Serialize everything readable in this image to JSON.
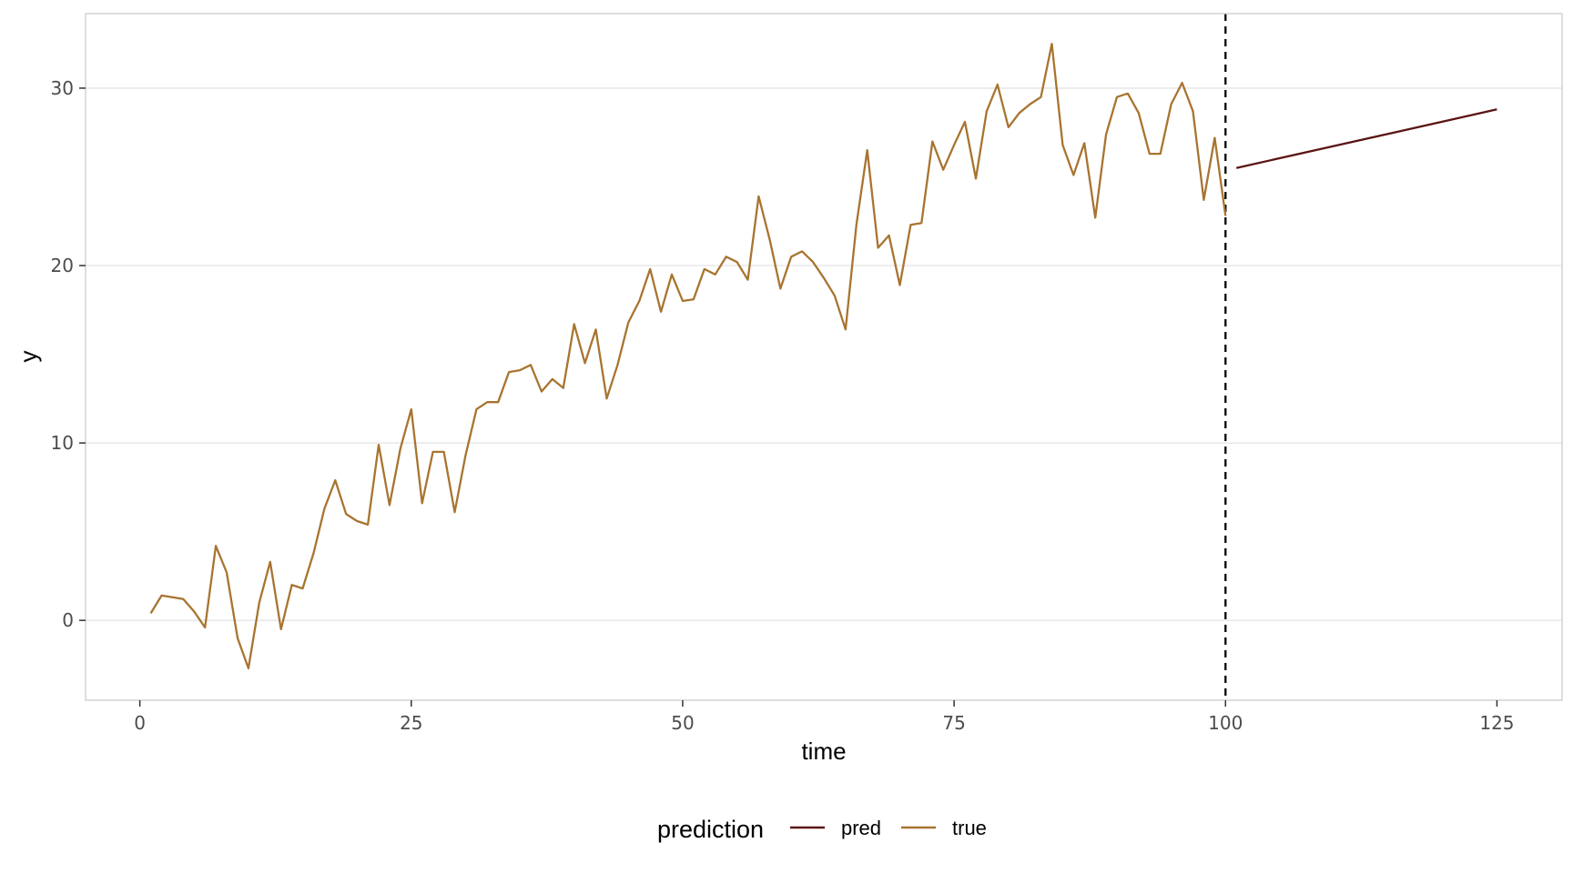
{
  "chart_data": {
    "type": "line",
    "title": "",
    "xlabel": "time",
    "ylabel": "y",
    "xlim": [
      -5,
      131
    ],
    "ylim": [
      -4.5,
      34.2
    ],
    "x_ticks": [
      0,
      25,
      50,
      75,
      100,
      125
    ],
    "y_ticks": [
      0,
      10,
      20,
      30
    ],
    "grid": true,
    "legend": {
      "title": "prediction",
      "position": "bottom"
    },
    "vline": {
      "x": 100,
      "style": "dashed",
      "color": "#000000"
    },
    "series": [
      {
        "name": "pred",
        "color": "#5a1414",
        "x": [
          101,
          125
        ],
        "y": [
          25.5,
          28.8
        ]
      },
      {
        "name": "true",
        "color": "#a87430",
        "x": [
          1,
          2,
          3,
          4,
          5,
          6,
          7,
          8,
          9,
          10,
          11,
          12,
          13,
          14,
          15,
          16,
          17,
          18,
          19,
          20,
          21,
          22,
          23,
          24,
          25,
          26,
          27,
          28,
          29,
          30,
          31,
          32,
          33,
          34,
          35,
          36,
          37,
          38,
          39,
          40,
          41,
          42,
          43,
          44,
          45,
          46,
          47,
          48,
          49,
          50,
          51,
          52,
          53,
          54,
          55,
          56,
          57,
          58,
          59,
          60,
          61,
          62,
          63,
          64,
          65,
          66,
          67,
          68,
          69,
          70,
          71,
          72,
          73,
          74,
          75,
          76,
          77,
          78,
          79,
          80,
          81,
          82,
          83,
          84,
          85,
          86,
          87,
          88,
          89,
          90,
          91,
          92,
          93,
          94,
          95,
          96,
          97,
          98,
          99,
          100
        ],
        "y": [
          0.4,
          1.4,
          1.3,
          1.2,
          0.5,
          -0.4,
          4.2,
          2.7,
          -1.0,
          -2.7,
          1.0,
          3.3,
          -0.5,
          2.0,
          1.8,
          3.8,
          6.3,
          7.9,
          6.0,
          5.6,
          5.4,
          9.9,
          6.5,
          9.7,
          11.9,
          6.6,
          9.5,
          9.5,
          6.1,
          9.3,
          11.9,
          12.3,
          12.3,
          14.0,
          14.1,
          14.4,
          12.9,
          13.6,
          13.1,
          16.7,
          14.5,
          16.4,
          12.5,
          14.4,
          16.8,
          18.0,
          19.8,
          17.4,
          19.5,
          18.0,
          18.1,
          19.8,
          19.5,
          20.5,
          20.2,
          19.2,
          23.9,
          21.5,
          18.7,
          20.5,
          20.8,
          20.2,
          19.3,
          18.3,
          16.4,
          22.3,
          26.5,
          21.0,
          21.7,
          18.9,
          22.3,
          22.4,
          27.0,
          25.4,
          26.8,
          28.1,
          24.9,
          28.7,
          30.2,
          27.8,
          28.6,
          29.1,
          29.5,
          32.5,
          26.8,
          25.1,
          26.9,
          22.7,
          27.4,
          29.5,
          29.7,
          28.6,
          26.3,
          26.3,
          29.1,
          30.3,
          28.7,
          23.7,
          27.2,
          22.8
        ]
      }
    ]
  }
}
